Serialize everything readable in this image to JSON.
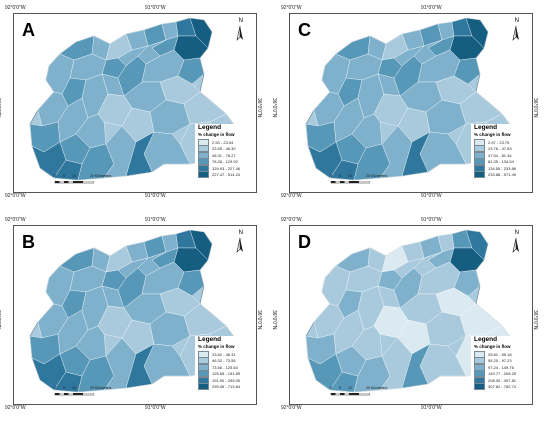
{
  "colors": {
    "c1": "#dbe9f1",
    "c2": "#a9cadc",
    "c3": "#7fb1cc",
    "c4": "#5797b8",
    "c5": "#2f779d",
    "c6": "#155e82",
    "frame": "#555555"
  },
  "coordinates": {
    "lon_left": "92°0'0\"W",
    "lon_mid": "91°0'0\"W",
    "lat": "36°0'0\"N"
  },
  "north_label": "N",
  "scale": {
    "ticks": [
      "0",
      "5",
      "10",
      "20 Kilometers"
    ]
  },
  "legend": {
    "title": "Legend",
    "subtitle": "% change in flow"
  },
  "panels": [
    {
      "letter": "A",
      "classes": [
        "2.53 - 23.54",
        "23.55 - 46.30",
        "46.31 - 78.27",
        "78.28 - 129.92",
        "129.93 - 227.46",
        "227.47 - 514.24"
      ]
    },
    {
      "letter": "C",
      "classes": [
        "2.57 - 23.75",
        "23.76 - 47.53",
        "47.54 - 81.34",
        "81.35 - 134.54",
        "134.55 - 233.86",
        "233.88 - 571.49"
      ]
    },
    {
      "letter": "B",
      "classes": [
        "23.82 - 46.31",
        "46.32 - 73.55",
        "73.56 - 125.64",
        "125.65 - 191.89",
        "191.90 - 299.05",
        "299.06 - 713.84"
      ]
    },
    {
      "letter": "D",
      "classes": [
        "25.81 - 55.18",
        "55.20 - 97.23",
        "97.24 - 149.76",
        "149.77 - 208.29",
        "208.30 - 307.81",
        "307.82 - 782.74"
      ]
    }
  ]
}
